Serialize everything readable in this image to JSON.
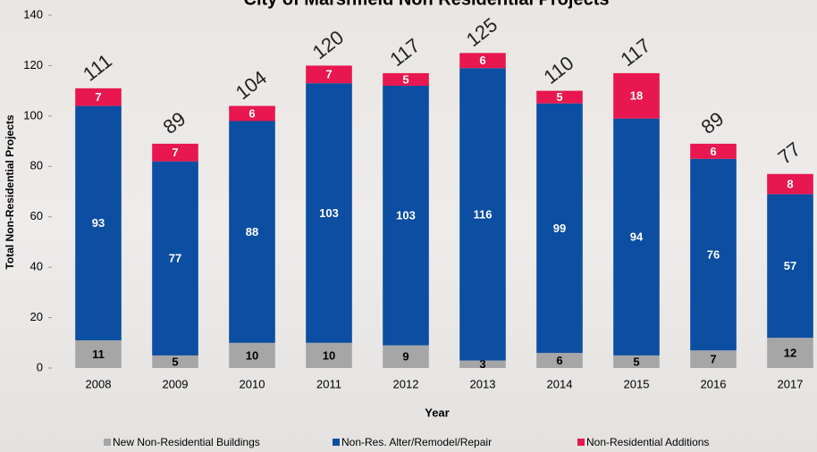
{
  "chart_data": {
    "type": "stacked-bar",
    "title": "City of Marshfield Non Residential Projects",
    "x_label": "Year",
    "y_label": "Total Non-Residential Projects",
    "categories": [
      "2008",
      "2009",
      "2010",
      "2011",
      "2012",
      "2013",
      "2014",
      "2015",
      "2016",
      "2017"
    ],
    "series": [
      {
        "name": "New Non-Residential Buildings",
        "color": "#a6a6a6",
        "label_color": "#000000",
        "values": [
          11,
          5,
          10,
          10,
          9,
          3,
          6,
          5,
          7,
          12
        ]
      },
      {
        "name": "Non-Res. Alter/Remodel/Repair",
        "color": "#0b4ea2",
        "label_color": "#ffffff",
        "values": [
          93,
          77,
          88,
          103,
          103,
          116,
          99,
          94,
          76,
          57
        ]
      },
      {
        "name": "Non-Residential Additions",
        "color": "#e8174f",
        "label_color": "#ffffff",
        "values": [
          7,
          7,
          6,
          7,
          5,
          6,
          5,
          18,
          6,
          8
        ]
      }
    ],
    "totals": [
      111,
      89,
      104,
      120,
      117,
      125,
      110,
      117,
      89,
      77
    ],
    "ylim": [
      0,
      140
    ],
    "yticks": [
      0,
      20,
      40,
      60,
      80,
      100,
      120,
      140
    ],
    "legend": "bottom"
  }
}
